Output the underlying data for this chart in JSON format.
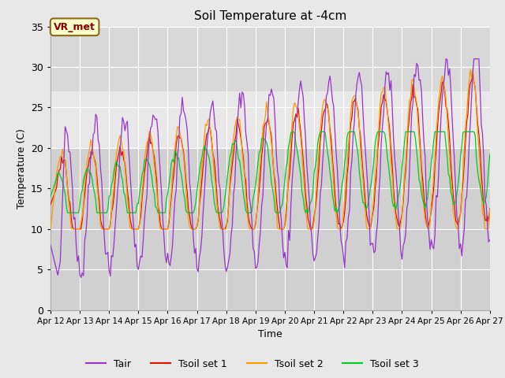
{
  "title": "Soil Temperature at -4cm",
  "xlabel": "Time",
  "ylabel": "Temperature (C)",
  "ylim": [
    0,
    35
  ],
  "xlim": [
    0,
    360
  ],
  "fig_bg_color": "#e8e8e8",
  "plot_bg_color": "#d4d4d4",
  "plot_bg_upper": "#e8e8e8",
  "upper_band_ymin": 27,
  "upper_band_ymax": 35,
  "lower_band_ymin": 0,
  "lower_band_ymax": 20,
  "colors": {
    "Tair": "#9933cc",
    "Tsoil_set1": "#dd1100",
    "Tsoil_set2": "#ff9900",
    "Tsoil_set3": "#00cc22"
  },
  "legend_labels": [
    "Tair",
    "Tsoil set 1",
    "Tsoil set 2",
    "Tsoil set 3"
  ],
  "xtick_labels": [
    "Apr 12",
    "Apr 13",
    "Apr 14",
    "Apr 15",
    "Apr 16",
    "Apr 17",
    "Apr 18",
    "Apr 19",
    "Apr 20",
    "Apr 21",
    "Apr 22",
    "Apr 23",
    "Apr 24",
    "Apr 25",
    "Apr 26",
    "Apr 27"
  ],
  "xtick_positions": [
    0,
    24,
    48,
    72,
    96,
    120,
    144,
    168,
    192,
    216,
    240,
    264,
    288,
    312,
    336,
    360
  ],
  "annotation_text": "VR_met",
  "n_hours": 361,
  "figsize": [
    6.4,
    4.8
  ],
  "dpi": 100
}
